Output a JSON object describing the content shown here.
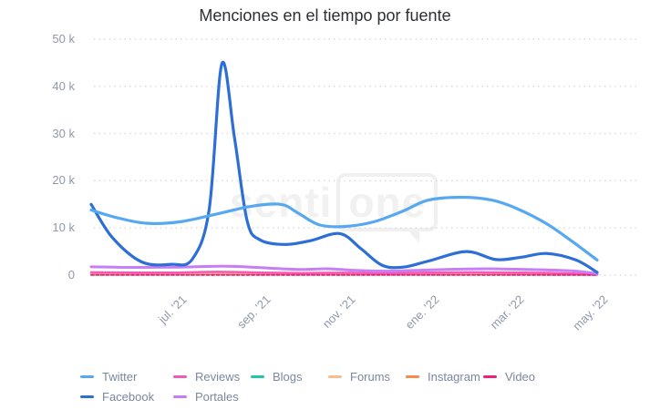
{
  "header": {
    "title": "Menciones en el tiempo por fuente"
  },
  "watermark": {
    "prefix": "senti",
    "boxed": "one"
  },
  "chart_data": {
    "type": "line",
    "title": "Menciones en el tiempo por fuente",
    "xlabel": "",
    "ylabel": "",
    "value_unit": "k (thousands of mentions)",
    "ylim": [
      0,
      50
    ],
    "grid": "horizontal dotted",
    "legend_position": "bottom",
    "x_model": "t = months elapsed since start of plotted range; ticks every 2 months",
    "x_ticks": [
      {
        "label": "jul. '21",
        "t": 2
      },
      {
        "label": "sep. '21",
        "t": 4
      },
      {
        "label": "nov. '21",
        "t": 6
      },
      {
        "label": "ene. '22",
        "t": 8
      },
      {
        "label": "mar. '22",
        "t": 10
      },
      {
        "label": "may. '22",
        "t": 12
      }
    ],
    "y_ticks": [
      {
        "label": "50 k",
        "value": 50
      },
      {
        "label": "40 k",
        "value": 40
      },
      {
        "label": "30 k",
        "value": 30
      },
      {
        "label": "20 k",
        "value": 20
      },
      {
        "label": "10 k",
        "value": 10
      },
      {
        "label": "0",
        "value": 0
      }
    ],
    "series": [
      {
        "name": "Twitter",
        "color": "#56a8f0",
        "width": 3.2,
        "points": [
          [
            0,
            13.8
          ],
          [
            0.6,
            12.2
          ],
          [
            1.3,
            11.0
          ],
          [
            2.1,
            11.3
          ],
          [
            3,
            13.0
          ],
          [
            3.8,
            14.6
          ],
          [
            4.5,
            15.0
          ],
          [
            4.9,
            13.2
          ],
          [
            5.4,
            10.7
          ],
          [
            6,
            10.3
          ],
          [
            6.7,
            11.3
          ],
          [
            7.4,
            13.6
          ],
          [
            8,
            15.9
          ],
          [
            8.8,
            16.5
          ],
          [
            9.5,
            15.9
          ],
          [
            10.1,
            14.1
          ],
          [
            10.8,
            10.9
          ],
          [
            11.4,
            7.2
          ],
          [
            12,
            3.2
          ]
        ]
      },
      {
        "name": "Facebook",
        "color": "#2d6fd6",
        "width": 3.2,
        "points": [
          [
            0,
            15.0
          ],
          [
            0.5,
            8.0
          ],
          [
            1.2,
            2.8
          ],
          [
            1.9,
            2.3
          ],
          [
            2.4,
            3.4
          ],
          [
            2.8,
            14
          ],
          [
            3.1,
            44.8
          ],
          [
            3.4,
            29
          ],
          [
            3.7,
            11.5
          ],
          [
            4,
            7.5
          ],
          [
            4.6,
            6.5
          ],
          [
            5.2,
            7.3
          ],
          [
            5.9,
            8.8
          ],
          [
            6.4,
            5.6
          ],
          [
            6.9,
            2.1
          ],
          [
            7.4,
            1.7
          ],
          [
            8,
            3.0
          ],
          [
            8.9,
            5.0
          ],
          [
            9.6,
            3.3
          ],
          [
            10.2,
            3.8
          ],
          [
            10.8,
            4.6
          ],
          [
            11.5,
            3.2
          ],
          [
            12,
            0.6
          ]
        ]
      },
      {
        "name": "Reviews",
        "color": "#f05ab4",
        "width": 2.5,
        "points": [
          [
            0,
            0.6
          ],
          [
            1,
            0.55
          ],
          [
            2,
            0.55
          ],
          [
            3,
            0.7
          ],
          [
            4,
            0.55
          ],
          [
            5,
            0.45
          ],
          [
            6,
            0.5
          ],
          [
            7,
            0.4
          ],
          [
            8,
            0.55
          ],
          [
            9,
            0.6
          ],
          [
            10,
            0.55
          ],
          [
            11,
            0.45
          ],
          [
            12,
            0.15
          ]
        ]
      },
      {
        "name": "Portales",
        "color": "#c67df5",
        "width": 3,
        "points": [
          [
            0,
            1.75
          ],
          [
            1,
            1.65
          ],
          [
            2,
            1.7
          ],
          [
            3,
            1.9
          ],
          [
            3.6,
            1.8
          ],
          [
            4.3,
            1.45
          ],
          [
            5,
            1.2
          ],
          [
            5.6,
            1.35
          ],
          [
            6.3,
            1.0
          ],
          [
            7,
            0.85
          ],
          [
            7.8,
            1.05
          ],
          [
            8.6,
            1.25
          ],
          [
            9.4,
            1.35
          ],
          [
            10.1,
            1.25
          ],
          [
            10.8,
            1.1
          ],
          [
            11.5,
            0.85
          ],
          [
            12,
            0.3
          ]
        ]
      },
      {
        "name": "Blogs",
        "color": "#1fc8a9",
        "width": 2,
        "points": [
          [
            0,
            0.12
          ],
          [
            3,
            0.12
          ],
          [
            6,
            0.1
          ],
          [
            9,
            0.12
          ],
          [
            12,
            0.05
          ]
        ]
      },
      {
        "name": "Forums",
        "color": "#f9bd8d",
        "width": 2.5,
        "points": [
          [
            0,
            0.35
          ],
          [
            1.5,
            0.32
          ],
          [
            3,
            0.36
          ],
          [
            4.5,
            0.32
          ],
          [
            6,
            0.3
          ],
          [
            7.5,
            0.34
          ],
          [
            9,
            0.42
          ],
          [
            10.5,
            0.38
          ],
          [
            12,
            0.1
          ]
        ]
      },
      {
        "name": "Instagram",
        "color": "#f98a47",
        "width": 2.2,
        "points": [
          [
            0,
            0.2
          ],
          [
            2,
            0.22
          ],
          [
            4,
            0.2
          ],
          [
            6,
            0.18
          ],
          [
            8,
            0.22
          ],
          [
            10,
            0.24
          ],
          [
            12,
            0.08
          ]
        ]
      },
      {
        "name": "Video",
        "color": "#e9217c",
        "width": 2,
        "dash": "3 2.5",
        "points": [
          [
            0,
            0.05
          ],
          [
            4,
            0.05
          ],
          [
            8,
            0.05
          ],
          [
            12,
            0.03
          ]
        ]
      }
    ],
    "draw_order": [
      "Blogs",
      "Instagram",
      "Forums",
      "Reviews",
      "Video",
      "Portales",
      "Facebook",
      "Twitter"
    ],
    "legend_columns": [
      [
        "Twitter",
        "Facebook"
      ],
      [
        "Reviews",
        "Portales"
      ],
      [
        "Blogs"
      ],
      [
        "Forums"
      ],
      [
        "Instagram"
      ],
      [
        "Video"
      ]
    ]
  }
}
